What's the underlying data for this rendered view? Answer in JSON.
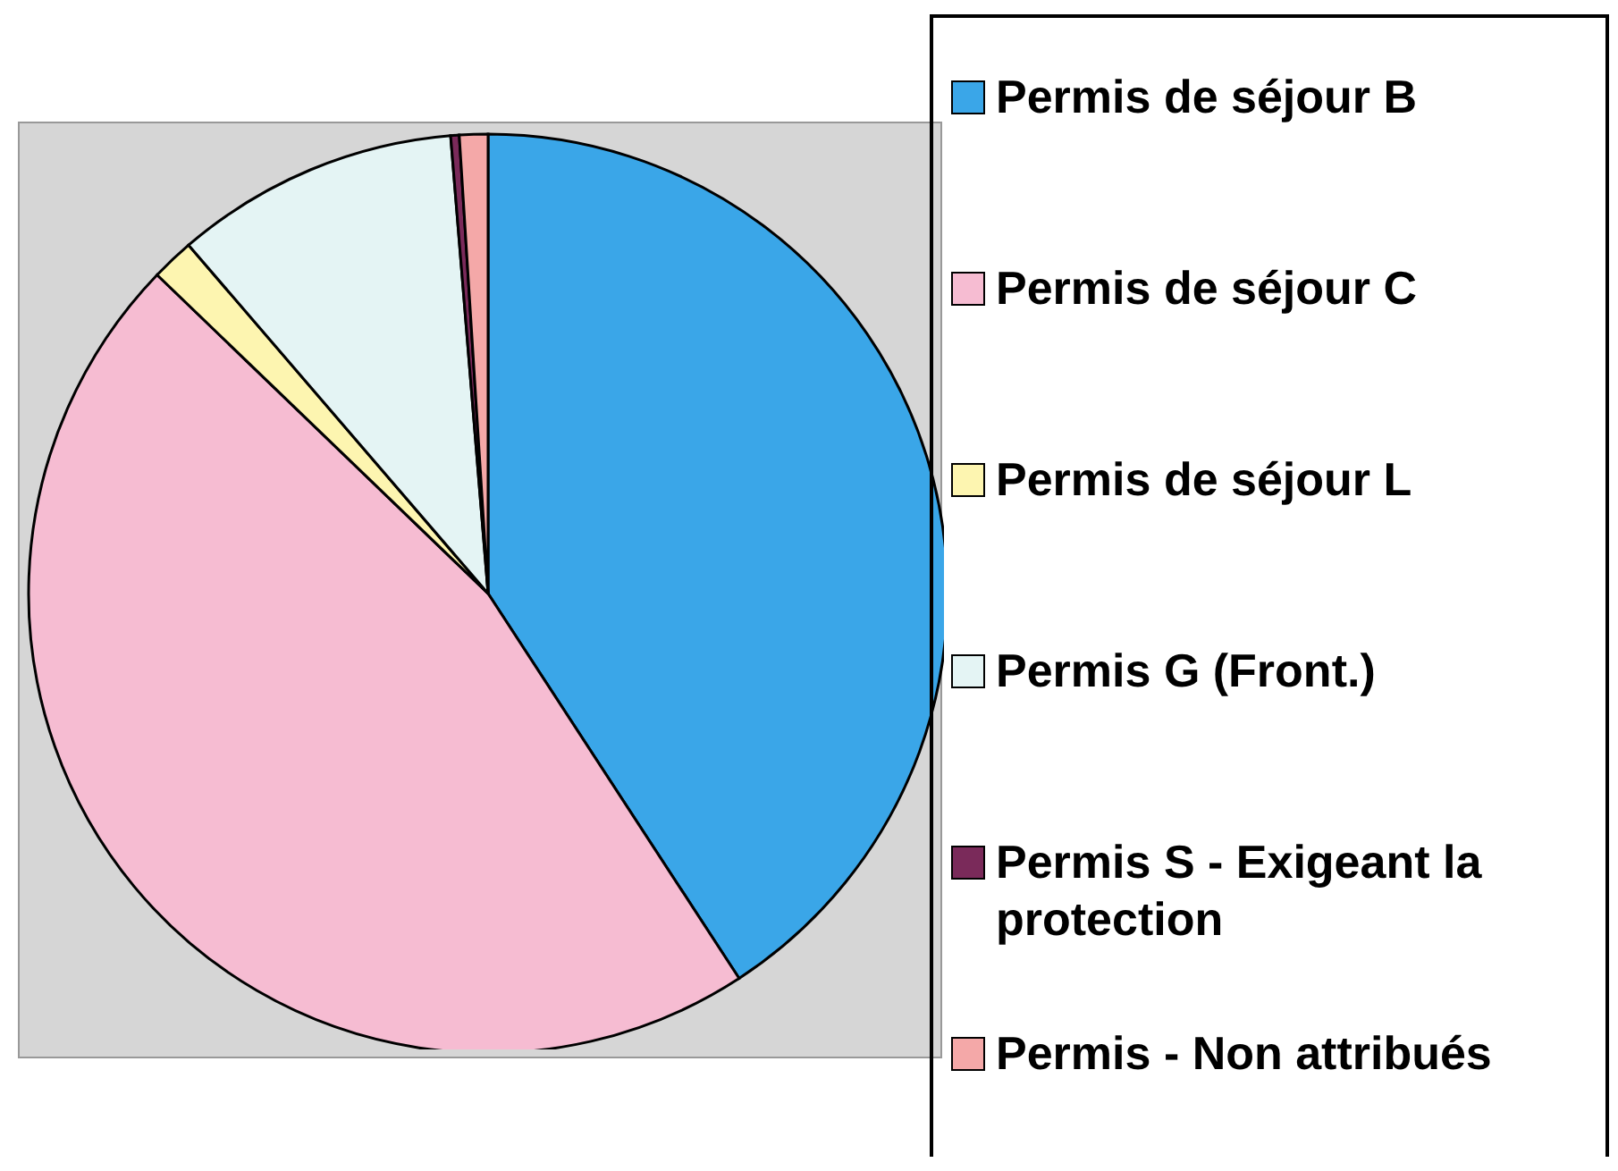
{
  "chart_data": {
    "type": "pie",
    "categories": [
      "Permis de séjour B",
      "Permis de séjour C",
      "Permis de séjour L",
      "Permis G (Front.)",
      "Permis S - Exigeant la protection",
      "Permis - Non attribués"
    ],
    "values": [
      40.8,
      46.4,
      1.5,
      10,
      0.3,
      1
    ],
    "colors": [
      "#3aa6e8",
      "#f6bcd2",
      "#fdf5b0",
      "#e4f4f4",
      "#7a2a5a",
      "#f4a8a8"
    ],
    "legend": "right"
  }
}
